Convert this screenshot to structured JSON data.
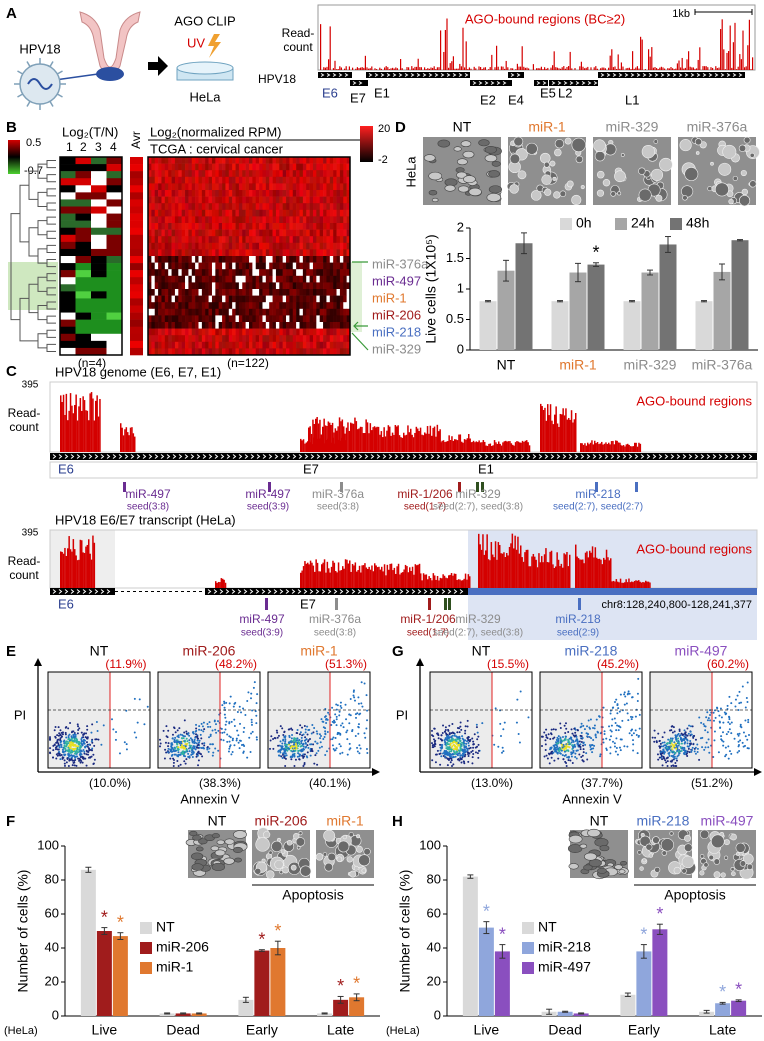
{
  "panel_labels": [
    "A",
    "B",
    "C",
    "D",
    "E",
    "F",
    "G",
    "H"
  ],
  "panel_a": {
    "virus": "HPV18",
    "method": "AGO CLIP",
    "uv": "UV",
    "cell_line": "HeLa",
    "track_title": "AGO-bound regions (BC≥2)",
    "y_label": [
      "Read-",
      "count"
    ],
    "scale_bar": "1kb",
    "genome": "HPV18",
    "genes": [
      "E6",
      "E7",
      "E1",
      "E2",
      "E4",
      "E5",
      "L2",
      "L1"
    ]
  },
  "panel_b": {
    "tn_title": "Log₂(T/N)",
    "tn_columns": [
      "1",
      "2",
      "3",
      "4"
    ],
    "tn_scale": [
      "0.5",
      "-0.7"
    ],
    "avr": "Avr",
    "rpm_title": "Log₂(normalized RPM)",
    "cohort": "TCGA : cervical cancer",
    "rpm_scale": [
      "20",
      "-2"
    ],
    "tn_n": "(n=4)",
    "rpm_n": "(n=122)",
    "mirnas": [
      {
        "name": "miR-376a",
        "color": "#8c8c8c"
      },
      {
        "name": "miR-497",
        "color": "#6a2c91"
      },
      {
        "name": "miR-1",
        "color": "#e0782f"
      },
      {
        "name": "miR-206",
        "color": "#a01c1c"
      },
      {
        "name": "miR-218",
        "color": "#4a6fc1"
      },
      {
        "name": "miR-329",
        "color": "#8c8c8c"
      }
    ]
  },
  "panel_c": {
    "tracks": [
      {
        "title": "HPV18 genome (E6, E7, E1)",
        "max": "395",
        "y_label": [
          "Read-",
          "count"
        ],
        "legend": "AGO-bound regions",
        "genes": [
          "E6",
          "E7",
          "E1"
        ],
        "sites": [
          {
            "name": "miR-497",
            "seed": "seed(3:8)",
            "color": "#6a2c91"
          },
          {
            "name": "miR-497",
            "seed": "seed(3:9)",
            "color": "#6a2c91"
          },
          {
            "name": "miR-376a",
            "seed": "seed(3:8)",
            "color": "#8c8c8c"
          },
          {
            "name": "miR-1/206",
            "seed": "seed(1:7)",
            "color": "#a01c1c"
          },
          {
            "name": "miR-329",
            "seed": "seed(2:7), seed(3:8)",
            "color": "#8c8c8c"
          },
          {
            "name": "miR-218",
            "seed": "seed(2:7), seed(2:7)",
            "color": "#4a6fc1"
          }
        ]
      },
      {
        "title": "HPV18  E6/E7  transcript (HeLa)",
        "max": "395",
        "y_label": [
          "Read-",
          "count"
        ],
        "legend": "AGO-bound regions",
        "genes": [
          "E6",
          "E7"
        ],
        "region": "chr8:128,240,800-128,241,377",
        "sites": [
          {
            "name": "miR-497",
            "seed": "seed(3:9)",
            "color": "#6a2c91"
          },
          {
            "name": "miR-376a",
            "seed": "seed(3:8)",
            "color": "#8c8c8c"
          },
          {
            "name": "miR-1/206",
            "seed": "seed(1:7)",
            "color": "#a01c1c"
          },
          {
            "name": "miR-329",
            "seed": "seed(2:7), seed(3:8)",
            "color": "#8c8c8c"
          },
          {
            "name": "miR-218",
            "seed": "seed(2:9)",
            "color": "#4a6fc1"
          }
        ]
      }
    ]
  },
  "panel_d": {
    "cell_line": "HeLa",
    "images": [
      {
        "name": "NT",
        "color": "#000000"
      },
      {
        "name": "miR-1",
        "color": "#e0782f"
      },
      {
        "name": "miR-329",
        "color": "#8c8c8c"
      },
      {
        "name": "miR-376a",
        "color": "#8c8c8c"
      }
    ]
  },
  "panel_e": {
    "y_label": "PI",
    "x_label": "Annexin V",
    "plots": [
      {
        "name": "NT",
        "color": "#000000",
        "upper": "(11.9%)",
        "lower": "(10.0%)"
      },
      {
        "name": "miR-206",
        "color": "#a01c1c",
        "upper": "(48.2%)",
        "lower": "(38.3%)"
      },
      {
        "name": "miR-1",
        "color": "#e0782f",
        "upper": "(51.3%)",
        "lower": "(40.1%)"
      }
    ]
  },
  "panel_f": {
    "images": [
      {
        "name": "NT",
        "color": "#000000"
      },
      {
        "name": "miR-206",
        "color": "#a01c1c"
      },
      {
        "name": "miR-1",
        "color": "#e0782f"
      }
    ],
    "group_label": "Apoptosis",
    "cell_line": "(HeLa)"
  },
  "panel_g": {
    "y_label": "PI",
    "x_label": "Annexin V",
    "plots": [
      {
        "name": "NT",
        "color": "#000000",
        "upper": "(15.5%)",
        "lower": "(13.0%)"
      },
      {
        "name": "miR-218",
        "color": "#4a6fc1",
        "upper": "(45.2%)",
        "lower": "(37.7%)"
      },
      {
        "name": "miR-497",
        "color": "#8a4fbf",
        "upper": "(60.2%)",
        "lower": "(51.2%)"
      }
    ]
  },
  "panel_h": {
    "images": [
      {
        "name": "NT",
        "color": "#000000"
      },
      {
        "name": "miR-218",
        "color": "#4a6fc1"
      },
      {
        "name": "miR-497",
        "color": "#8a4fbf"
      }
    ],
    "group_label": "Apoptosis",
    "cell_line": "(HeLa)"
  },
  "chart_data": [
    {
      "type": "bar",
      "y_label": "Live cells (1X10⁵)",
      "categories": [
        "NT",
        "miR-1",
        "miR-329",
        "miR-376a"
      ],
      "category_colors": [
        "#000000",
        "#e0782f",
        "#8c8c8c",
        "#8c8c8c"
      ],
      "series": [
        {
          "name": "0h",
          "color": "#d9d9d9",
          "values": [
            0.8,
            0.8,
            0.8,
            0.8
          ],
          "errors": [
            0.01,
            0.01,
            0.01,
            0.01
          ]
        },
        {
          "name": "24h",
          "color": "#a6a6a6",
          "values": [
            1.3,
            1.27,
            1.27,
            1.28
          ],
          "errors": [
            0.17,
            0.15,
            0.04,
            0.13
          ]
        },
        {
          "name": "48h",
          "color": "#737373",
          "values": [
            1.75,
            1.4,
            1.73,
            1.8
          ],
          "errors": [
            0.17,
            0.03,
            0.13,
            0.01
          ],
          "significance": [
            null,
            "*",
            null,
            null
          ]
        }
      ],
      "ylim": [
        0,
        2
      ],
      "yticks": [
        0,
        0.5,
        1,
        1.5,
        2
      ],
      "legend": "top"
    },
    {
      "type": "bar",
      "y_label": "Number of cells (%)",
      "categories": [
        "Live",
        "Dead",
        "Early",
        "Late"
      ],
      "series": [
        {
          "name": "NT",
          "color": "#d9d9d9",
          "values": [
            86,
            1.5,
            9.5,
            1.5
          ],
          "errors": [
            1.5,
            0.3,
            1.5,
            0.3
          ]
        },
        {
          "name": "miR-206",
          "color": "#a01c1c",
          "values": [
            50,
            1.5,
            38.5,
            9.5
          ],
          "errors": [
            2,
            0.3,
            0.5,
            2
          ],
          "significance": [
            "*",
            null,
            "*",
            "*"
          ]
        },
        {
          "name": "miR-1",
          "color": "#e0782f",
          "values": [
            47,
            1.5,
            40,
            11
          ],
          "errors": [
            2,
            0.3,
            4,
            2
          ],
          "significance": [
            "*",
            null,
            "*",
            "*"
          ]
        }
      ],
      "ylim": [
        0,
        100
      ],
      "yticks": [
        0,
        20,
        40,
        60,
        80,
        100
      ],
      "legend": "center"
    },
    {
      "type": "bar",
      "y_label": "Number of cells (%)",
      "categories": [
        "Live",
        "Dead",
        "Early",
        "Late"
      ],
      "series": [
        {
          "name": "NT",
          "color": "#d9d9d9",
          "values": [
            82,
            2.5,
            12.5,
            2.5
          ],
          "errors": [
            1,
            1.5,
            1,
            0.8
          ]
        },
        {
          "name": "miR-218",
          "color": "#8fa6dc",
          "values": [
            52,
            2.5,
            38,
            7.5
          ],
          "errors": [
            3.5,
            0.3,
            4,
            0.5
          ],
          "significance": [
            "*",
            null,
            "*",
            "*"
          ]
        },
        {
          "name": "miR-497",
          "color": "#8a4fbf",
          "values": [
            38,
            1.5,
            51,
            9
          ],
          "errors": [
            4,
            0.3,
            3,
            0.5
          ],
          "significance": [
            "*",
            null,
            "*",
            "*"
          ]
        }
      ],
      "ylim": [
        0,
        100
      ],
      "yticks": [
        0,
        20,
        40,
        60,
        80,
        100
      ],
      "legend": "center"
    }
  ]
}
